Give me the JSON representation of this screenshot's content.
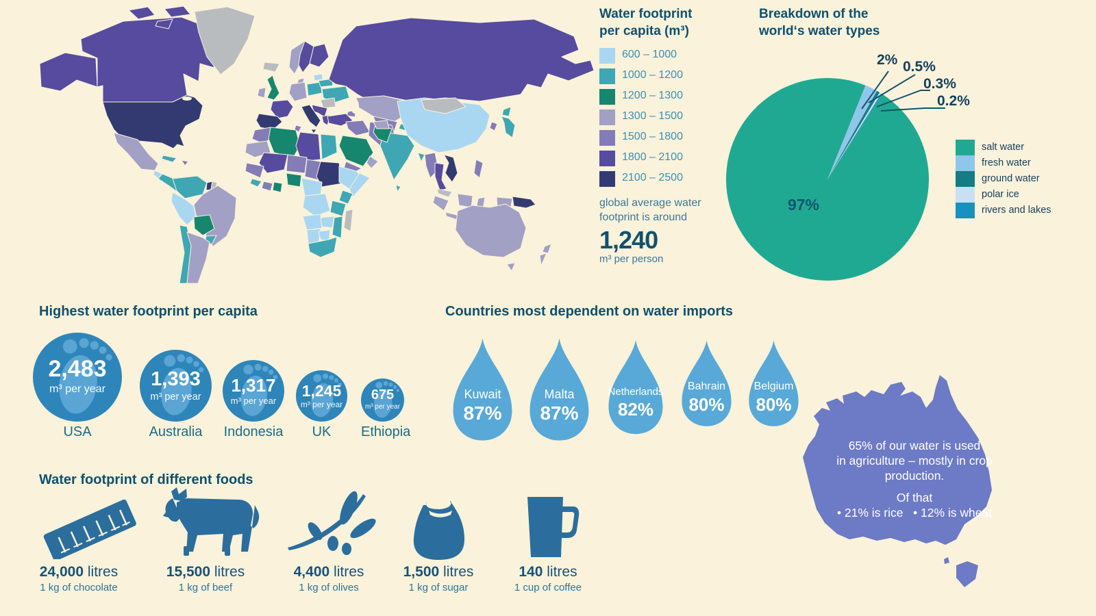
{
  "map_legend": {
    "title_line1": "Water footprint",
    "title_line2": "per capita (m³)",
    "ranges": [
      {
        "label": "600 – 1000",
        "color": "#a9d7f1"
      },
      {
        "label": "1000 – 1200",
        "color": "#3ea7b3"
      },
      {
        "label": "1200 – 1300",
        "color": "#17866f"
      },
      {
        "label": "1300 – 1500",
        "color": "#a3a0c5"
      },
      {
        "label": "1500 – 1800",
        "color": "#837cb7"
      },
      {
        "label": "1800 – 2100",
        "color": "#564b9e"
      },
      {
        "label": "2100 – 2500",
        "color": "#333a72"
      }
    ],
    "no_data_color": "#b9bcbf",
    "note_line1": "global average water",
    "note_line2": "footprint is around",
    "average_value": "1,240",
    "average_unit": "m³ per person"
  },
  "water_types": {
    "title_line1": "Breakdown of the",
    "title_line2": "world‘s water types",
    "inside_label": "97%",
    "callouts": [
      "2%",
      "0.5%",
      "0.3%",
      "0.2%"
    ],
    "slices": [
      {
        "label": "salt water",
        "value": 97,
        "color": "#20a992"
      },
      {
        "label": "fresh water",
        "value": 2,
        "color": "#8fc6e9"
      },
      {
        "label": "ground water",
        "value": 0.5,
        "color": "#137c85"
      },
      {
        "label": "polar ice",
        "value": 0.3,
        "color": "#c9e0f2"
      },
      {
        "label": "rivers and lakes",
        "value": 0.2,
        "color": "#1792c0"
      }
    ]
  },
  "footprints": {
    "title": "Highest water footprint per capita",
    "items": [
      {
        "country": "USA",
        "value": "2,483",
        "unit": "m³ per year"
      },
      {
        "country": "Australia",
        "value": "1,393",
        "unit": "m³ per year"
      },
      {
        "country": "Indonesia",
        "value": "1,317",
        "unit": "m³ per year"
      },
      {
        "country": "UK",
        "value": "1,245",
        "unit": "m³ per year"
      },
      {
        "country": "Ethiopia",
        "value": "675",
        "unit": "m³ per year"
      }
    ]
  },
  "imports": {
    "title": "Countries most dependent on water imports",
    "items": [
      {
        "country": "Kuwait",
        "value": "87%"
      },
      {
        "country": "Malta",
        "value": "87%"
      },
      {
        "country": "Netherlands",
        "value": "82%"
      },
      {
        "country": "Bahrain",
        "value": "80%"
      },
      {
        "country": "Belgium",
        "value": "80%"
      }
    ]
  },
  "foods": {
    "title": "Water footprint of different foods",
    "items": [
      {
        "icon": "chocolate-bar-icon",
        "value": "24,000",
        "unit": "litres",
        "label": "1 kg of chocolate"
      },
      {
        "icon": "cow-icon",
        "value": "15,500",
        "unit": "litres",
        "label": "1 kg of beef"
      },
      {
        "icon": "olive-branch-icon",
        "value": "4,400",
        "unit": "litres",
        "label": "1 kg of olives"
      },
      {
        "icon": "sugar-sack-icon",
        "value": "1,500",
        "unit": "litres",
        "label": "1 kg of sugar"
      },
      {
        "icon": "coffee-mug-icon",
        "value": "140",
        "unit": "litres",
        "label": "1 cup of coffee"
      }
    ]
  },
  "australia_fact": {
    "line1": "65% of our water is used",
    "line2": "in agriculture – mostly in crop",
    "line3": "production.",
    "line4": "Of that",
    "line5": "• 21% is rice   • 12% is wheat"
  },
  "chart_data": [
    {
      "type": "heatmap",
      "subtype": "choropleth-world-map",
      "title": "Water footprint per capita (m³)",
      "bins": [
        "600 – 1000",
        "1000 – 1200",
        "1200 – 1300",
        "1300 – 1500",
        "1500 – 1800",
        "1800 – 2100",
        "2100 – 2500"
      ],
      "bin_colors": [
        "#a9d7f1",
        "#3ea7b3",
        "#17866f",
        "#a3a0c5",
        "#837cb7",
        "#564b9e",
        "#333a72"
      ],
      "no_data_color": "#b9bcbf",
      "global_average_m3_per_person": 1240,
      "regions": {
        "alaska": 5,
        "canada": 5,
        "arctic_a": 5,
        "arctic_b": 5,
        "arctic_c": 5,
        "greenland": "x",
        "iceland": "x",
        "usa": 6,
        "mexico": 3,
        "guatemala": 0,
        "centralamerica": 1,
        "cuba": 1,
        "hispaniola": 4,
        "colombia_venezuela": 1,
        "guyana": 6,
        "suriname": "x",
        "brazil": 3,
        "peru": 0,
        "bolivia": 2,
        "paraguay": 1,
        "chile": 1,
        "argentina": 3,
        "norway": 3,
        "sweden": 5,
        "finland": 5,
        "denmark": 3,
        "uk": 2,
        "ireland": 3,
        "france": 5,
        "iberia": 6,
        "central_europe": 3,
        "poland": 1,
        "belarus": 1,
        "baltics": 0,
        "ukraine": 1,
        "romania": "x",
        "balkans": 5,
        "italy": 6,
        "sicily": 6,
        "greece": 5,
        "russia": 5,
        "kazakhstan": 3,
        "uzbek_turkmen": 4,
        "kyrgyz": 1,
        "caucasus": 4,
        "turkey": 5,
        "syria_iraq": 4,
        "iran": 4,
        "saudi": 2,
        "yemen": 4,
        "oman": 3,
        "morocco": 4,
        "mauritania": 3,
        "algeria": 2,
        "tunisia": 4,
        "libya": 5,
        "egypt": 1,
        "mali": 5,
        "niger": 4,
        "chad": 4,
        "sudan": 6,
        "senegal": 4,
        "guinea": 1,
        "ivory": 4,
        "ghana": 2,
        "nigeria": 2,
        "cameroon": 0,
        "ethiopia": 0,
        "somalia": 0,
        "kenya": 1,
        "drc": 0,
        "tanzania": 1,
        "angola": 0,
        "zambia": 0,
        "mozambique": 1,
        "namibia": 0,
        "botswana": 0,
        "south_africa": 1,
        "madagascar": "x",
        "india": 1,
        "sri_lanka": 1,
        "pakistan": 2,
        "afghanistan": 3,
        "bangladesh": 1,
        "china": 0,
        "mongolia": "x",
        "myanmar": 4,
        "thailand": 5,
        "vietnam": 6,
        "malaysia": "x",
        "philippines": 4,
        "sumatra": 3,
        "java": 3,
        "borneo": 3,
        "sulawesi": 3,
        "west_papua": 3,
        "png": 6,
        "hokkaido": 1,
        "honshu": 1,
        "south_korea": 4,
        "australia": 3,
        "tasmania": 3,
        "nz_north": 3,
        "nz_south": 3
      }
    },
    {
      "type": "pie",
      "title": "Breakdown of the world‘s water types",
      "categories": [
        "salt water",
        "fresh water",
        "ground water",
        "polar ice",
        "rivers and lakes"
      ],
      "values": [
        97,
        2,
        0.5,
        0.3,
        0.2
      ],
      "colors": [
        "#20a992",
        "#8fc6e9",
        "#137c85",
        "#c9e0f2",
        "#1792c0"
      ],
      "legend_position": "right"
    },
    {
      "type": "bar",
      "subtype": "pictogram-circles",
      "title": "Highest water footprint per capita",
      "categories": [
        "USA",
        "Australia",
        "Indonesia",
        "UK",
        "Ethiopia"
      ],
      "values": [
        2483,
        1393,
        1317,
        1245,
        675
      ],
      "ylabel": "m³ per year"
    },
    {
      "type": "bar",
      "subtype": "pictogram-drops",
      "title": "Countries most dependent on water imports",
      "categories": [
        "Kuwait",
        "Malta",
        "Netherlands",
        "Bahrain",
        "Belgium"
      ],
      "values": [
        87,
        87,
        82,
        80,
        80
      ],
      "ylabel": "% dependent on imports"
    },
    {
      "type": "bar",
      "subtype": "pictogram-foods",
      "title": "Water footprint of different foods",
      "categories": [
        "1 kg of chocolate",
        "1 kg of beef",
        "1 kg of olives",
        "1 kg of sugar",
        "1 cup of coffee"
      ],
      "values": [
        24000,
        15500,
        4400,
        1500,
        140
      ],
      "ylabel": "litres"
    },
    {
      "type": "area",
      "subtype": "annotation-australia",
      "title": "Water use in agriculture (Australia)",
      "values": [
        65,
        21,
        12
      ],
      "categories": [
        "share of water used in agriculture %",
        "of that: rice %",
        "of that: wheat %"
      ]
    }
  ]
}
